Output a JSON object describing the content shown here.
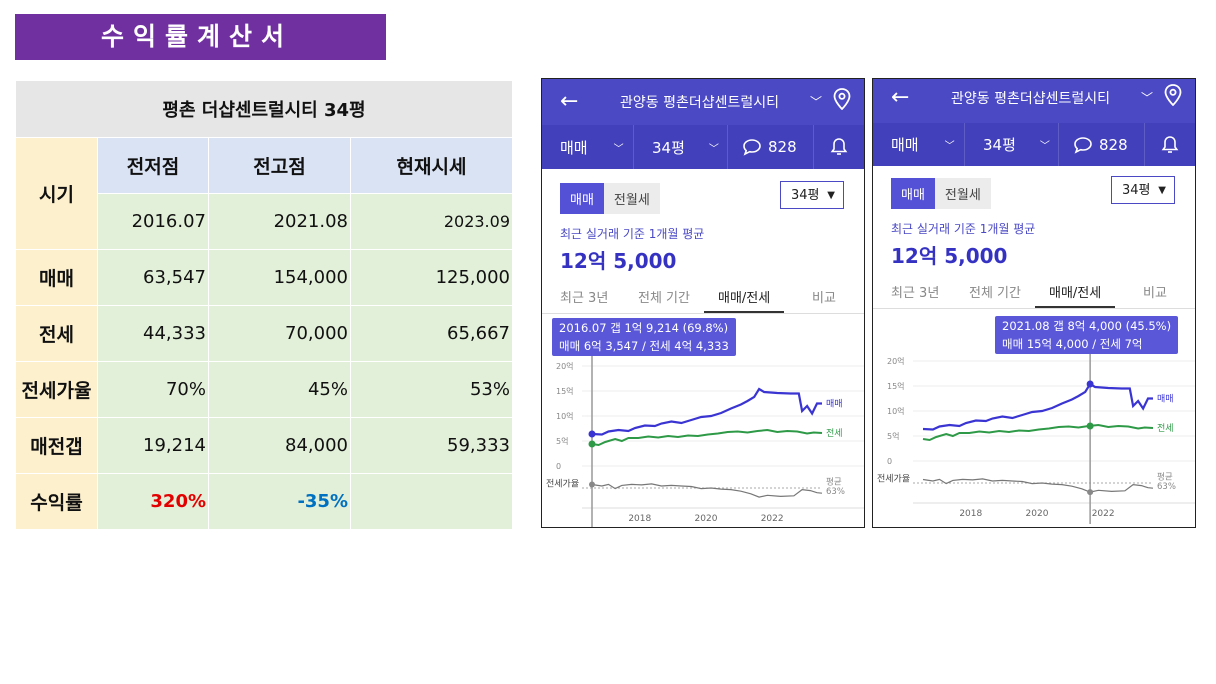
{
  "title": "수익률계산서",
  "table": {
    "header": "평촌 더샵센트럴시티 34평",
    "columns": [
      "전저점",
      "전고점",
      "현재시세"
    ],
    "rows": [
      {
        "label": "시기",
        "values": [
          "2016.07",
          "2021.08",
          "2023.09"
        ]
      },
      {
        "label": "매매",
        "values": [
          "63,547",
          "154,000",
          "125,000"
        ]
      },
      {
        "label": "전세",
        "values": [
          "44,333",
          "70,000",
          "65,667"
        ]
      },
      {
        "label": "전세가율",
        "values": [
          "70%",
          "45%",
          "53%"
        ]
      },
      {
        "label": "매전갭",
        "values": [
          "19,214",
          "84,000",
          "59,333"
        ]
      },
      {
        "label": "수익률",
        "values": [
          "320%",
          "-35%",
          ""
        ]
      }
    ]
  },
  "phones": [
    {
      "back": "←",
      "title": "관양동 평촌더샵센트럴시티",
      "filter_type": "매매",
      "filter_size": "34평",
      "comments": "828",
      "toggle_on": "매매",
      "toggle_off": "전월세",
      "select": "34평",
      "subtitle": "최근 실거래 기준 1개월 평균",
      "price": "12억 5,000",
      "tabs": [
        "최근 3년",
        "전체 기간",
        "매매/전세",
        "비교"
      ],
      "tooltip_line1": "2016.07  갭 1억 9,214 (69.8%)",
      "tooltip_line2": "매매 6억 3,547 / 전세 4억 4,333"
    },
    {
      "back": "←",
      "title": "관양동 평촌더샵센트럴시티",
      "filter_type": "매매",
      "filter_size": "34평",
      "comments": "828",
      "toggle_on": "매매",
      "toggle_off": "전월세",
      "select": "34평",
      "subtitle": "최근 실거래 기준 1개월 평균",
      "price": "12억 5,000",
      "tabs": [
        "최근 3년",
        "전체 기간",
        "매매/전세",
        "비교"
      ],
      "tooltip_line1": "2021.08  갭 8억 4,000 (45.5%)",
      "tooltip_line2": "매매 15억 4,000 / 전세 7억"
    }
  ],
  "chart": {
    "y_ticks": [
      "20억",
      "15억",
      "10억",
      "5억",
      "0"
    ],
    "x_ticks": [
      "2018",
      "2020",
      "2022"
    ],
    "series_sale": "매매",
    "series_jeonse": "전세",
    "ratio_label": "전세가율",
    "avg_label": "평균",
    "avg_value": "63%",
    "colors": {
      "sale": "#3a35d2",
      "jeonse": "#2e9a47",
      "ratio": "#777777"
    },
    "sale_points": [
      [
        2016.6,
        6.4
      ],
      [
        2016.9,
        6.3
      ],
      [
        2017.1,
        6.9
      ],
      [
        2017.4,
        7.2
      ],
      [
        2017.7,
        7.0
      ],
      [
        2017.9,
        7.6
      ],
      [
        2018.2,
        8.1
      ],
      [
        2018.5,
        8.0
      ],
      [
        2018.7,
        8.5
      ],
      [
        2019.0,
        8.9
      ],
      [
        2019.3,
        8.6
      ],
      [
        2019.6,
        9.2
      ],
      [
        2019.9,
        9.8
      ],
      [
        2020.2,
        10.0
      ],
      [
        2020.5,
        10.6
      ],
      [
        2020.8,
        11.5
      ],
      [
        2021.1,
        12.3
      ],
      [
        2021.3,
        13.0
      ],
      [
        2021.5,
        13.8
      ],
      [
        2021.65,
        15.4
      ],
      [
        2021.8,
        14.8
      ],
      [
        2022.2,
        14.6
      ],
      [
        2022.6,
        14.5
      ],
      [
        2022.85,
        14.5
      ],
      [
        2022.95,
        11.0
      ],
      [
        2023.1,
        12.0
      ],
      [
        2023.25,
        10.5
      ],
      [
        2023.4,
        12.5
      ],
      [
        2023.55,
        12.5
      ]
    ],
    "jeonse_points": [
      [
        2016.6,
        4.4
      ],
      [
        2016.8,
        4.2
      ],
      [
        2017.0,
        4.8
      ],
      [
        2017.3,
        5.4
      ],
      [
        2017.5,
        5.0
      ],
      [
        2017.7,
        5.6
      ],
      [
        2018.0,
        5.6
      ],
      [
        2018.3,
        5.9
      ],
      [
        2018.6,
        5.7
      ],
      [
        2018.9,
        6.0
      ],
      [
        2019.2,
        5.8
      ],
      [
        2019.5,
        6.1
      ],
      [
        2019.8,
        6.0
      ],
      [
        2020.1,
        6.3
      ],
      [
        2020.4,
        6.5
      ],
      [
        2020.7,
        6.8
      ],
      [
        2021.0,
        6.9
      ],
      [
        2021.3,
        6.7
      ],
      [
        2021.6,
        7.0
      ],
      [
        2021.9,
        7.2
      ],
      [
        2022.2,
        6.8
      ],
      [
        2022.5,
        7.0
      ],
      [
        2022.8,
        6.9
      ],
      [
        2023.1,
        6.5
      ],
      [
        2023.3,
        6.7
      ],
      [
        2023.55,
        6.6
      ]
    ],
    "ratio_points": [
      [
        2016.6,
        69.8
      ],
      [
        2016.9,
        67
      ],
      [
        2017.1,
        70
      ],
      [
        2017.3,
        62
      ],
      [
        2017.5,
        68
      ],
      [
        2017.8,
        70
      ],
      [
        2018.1,
        69
      ],
      [
        2018.4,
        71
      ],
      [
        2018.7,
        67
      ],
      [
        2019.0,
        68
      ],
      [
        2019.3,
        67
      ],
      [
        2019.6,
        66
      ],
      [
        2019.9,
        62
      ],
      [
        2020.2,
        63
      ],
      [
        2020.5,
        61
      ],
      [
        2020.8,
        60
      ],
      [
        2021.1,
        57
      ],
      [
        2021.4,
        52
      ],
      [
        2021.65,
        45.5
      ],
      [
        2021.9,
        49
      ],
      [
        2022.3,
        47
      ],
      [
        2022.7,
        48
      ],
      [
        2022.95,
        60
      ],
      [
        2023.2,
        58
      ],
      [
        2023.4,
        54
      ],
      [
        2023.55,
        53
      ]
    ],
    "markers": [
      {
        "x": 2016.6
      },
      {
        "x": 2021.65
      }
    ]
  }
}
